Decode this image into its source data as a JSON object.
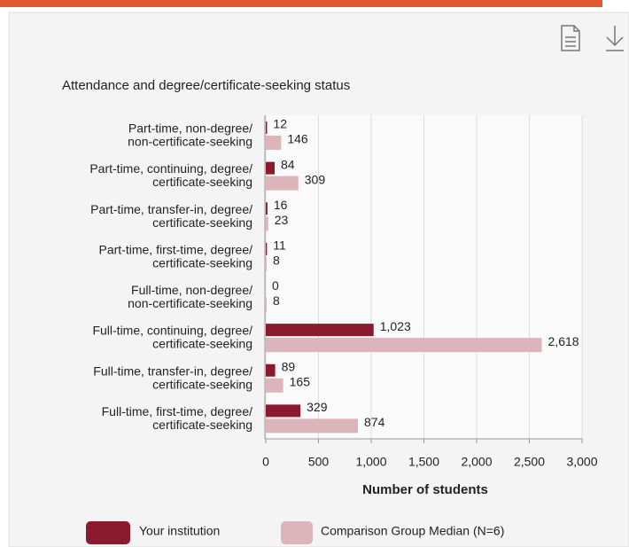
{
  "chart_data": {
    "type": "bar",
    "orientation": "horizontal",
    "title": "Attendance and degree/certificate-seeking status",
    "categories": [
      [
        "Part-time, non-degree/",
        "non-certificate-seeking"
      ],
      [
        "Part-time, continuing, degree/",
        "certificate-seeking"
      ],
      [
        "Part-time, transfer-in, degree/",
        "certificate-seeking"
      ],
      [
        "Part-time, first-time, degree/",
        "certificate-seeking"
      ],
      [
        "Full-time, non-degree/",
        "non-certificate-seeking"
      ],
      [
        "Full-time, continuing, degree/",
        "certificate-seeking"
      ],
      [
        "Full-time, transfer-in, degree/",
        "certificate-seeking"
      ],
      [
        "Full-time, first-time, degree/",
        "certificate-seeking"
      ]
    ],
    "series": [
      {
        "name": "Your institution",
        "color": "#8b1a2e",
        "values": [
          12,
          84,
          16,
          11,
          0,
          1023,
          89,
          329
        ],
        "value_labels": [
          "12",
          "84",
          "16",
          "11",
          "0",
          "1,023",
          "89",
          "329"
        ]
      },
      {
        "name": "Comparison Group Median (N=6)",
        "color": "#dcb4bb",
        "values": [
          146,
          309,
          23,
          8,
          8,
          2618,
          165,
          874
        ],
        "value_labels": [
          "146",
          "309",
          "23",
          "8",
          "8",
          "2,618",
          "165",
          "874"
        ]
      }
    ],
    "xlabel": "Number of students",
    "xlim": [
      0,
      3000
    ],
    "xticks": [
      0,
      500,
      {
        "value": 1000,
        "label": "1,000"
      },
      {
        "value": 1500,
        "label": "1,500"
      },
      {
        "value": 2000,
        "label": "2,000"
      },
      {
        "value": 2500,
        "label": "2,500"
      },
      {
        "value": 3000,
        "label": "3,000"
      }
    ],
    "grid": true,
    "legend": "bottom"
  }
}
